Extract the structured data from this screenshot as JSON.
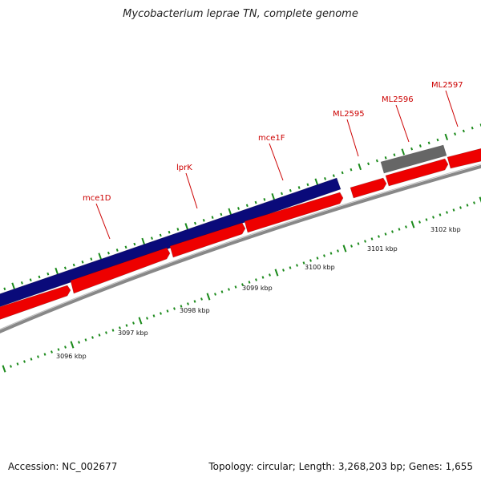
{
  "title": "Mycobacterium leprae TN, complete genome",
  "footer": {
    "accession": "Accession: NC_002677",
    "summary": "Topology: circular; Length: 3,268,203 bp; Genes: 1,655"
  },
  "colors": {
    "forward_gene": "#ee0000",
    "reverse_feature": "#0a0a7a",
    "gray_feature": "#666666",
    "backbone": "#888888",
    "ticks": "#1b8a1b",
    "label": "#cc0000"
  },
  "gene_labels": [
    "mce1D",
    "lprK",
    "mce1F",
    "ML2595",
    "ML2596",
    "ML2597"
  ],
  "kbp_labels": [
    "3096 kbp",
    "3097 kbp",
    "3098 kbp",
    "3099 kbp",
    "3100 kbp",
    "3101 kbp",
    "3102 kbp"
  ]
}
